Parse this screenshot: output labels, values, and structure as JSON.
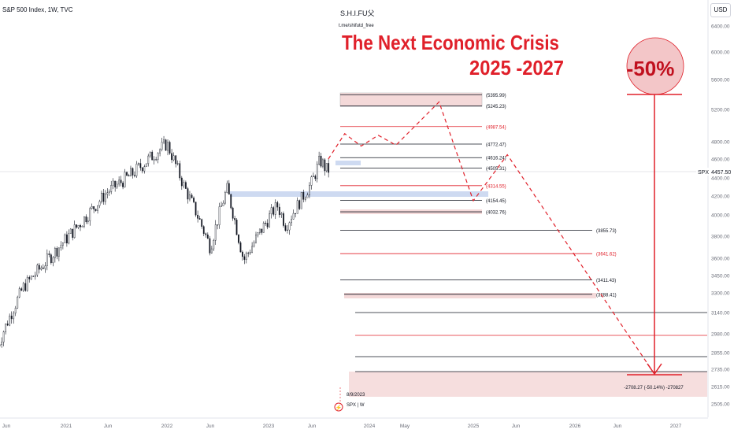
{
  "header": {
    "symbol_title": "S&P 500 Index, 1W, TVC",
    "author": "S.H.I.FU父",
    "author_link": "t.me/shifutd_free",
    "currency_button": "USD"
  },
  "annotations": {
    "headline_line1": "The Next Economic Crisis",
    "headline_line2": "2025 -2027",
    "drop_badge": "-50%",
    "start_date": "8/9/2023",
    "mini_symbol": "SPX | W",
    "measure_label": "-2708.27 (-50.14%) -270827"
  },
  "price_label": {
    "symbol": "SPX",
    "value": "4457.50"
  },
  "colors": {
    "red": "#e0202a",
    "dark_red": "#c0101e",
    "candle": "#131722",
    "zone_fill": "#f4d9d9",
    "blue_zone": "#b8c8e8",
    "badge_fill": "#f3c6c8"
  },
  "chart_data": {
    "type": "candlestick",
    "x_ticks": [
      "Jun",
      "2021",
      "Jun",
      "2022",
      "Jun",
      "2023",
      "Jun",
      "2024",
      "May",
      "2025",
      "Jun",
      "2026",
      "Jun",
      "2027"
    ],
    "y_ticks": [
      6400,
      6000,
      5600,
      5200,
      4800,
      4600,
      4400,
      4200,
      4000,
      3800,
      3600,
      3450,
      3300,
      3140,
      2980,
      2855,
      2735,
      2615,
      2505
    ],
    "y_range": [
      2505,
      6400
    ],
    "series_anchor_points": [
      {
        "date": "2020-05",
        "close": 2900
      },
      {
        "date": "2020-08",
        "close": 3350
      },
      {
        "date": "2020-11",
        "close": 3600
      },
      {
        "date": "2021-03",
        "close": 3950
      },
      {
        "date": "2021-06",
        "close": 4250
      },
      {
        "date": "2021-09",
        "close": 4450
      },
      {
        "date": "2022-01",
        "close": 4780
      },
      {
        "date": "2022-03",
        "close": 4300
      },
      {
        "date": "2022-06",
        "close": 3700
      },
      {
        "date": "2022-08",
        "close": 4280
      },
      {
        "date": "2022-10",
        "close": 3580
      },
      {
        "date": "2023-02",
        "close": 4100
      },
      {
        "date": "2023-03",
        "close": 3900
      },
      {
        "date": "2023-06",
        "close": 4350
      },
      {
        "date": "2023-07",
        "close": 4590
      },
      {
        "date": "2023-08",
        "close": 4457.5
      }
    ],
    "levels": [
      {
        "label": "(5395.99)",
        "value": 5395.99,
        "color": "black"
      },
      {
        "label": "(5245.23)",
        "value": 5245.23,
        "color": "black"
      },
      {
        "label": "(4987.54)",
        "value": 4987.54,
        "color": "red"
      },
      {
        "label": "(4772.47)",
        "value": 4772.47,
        "color": "black"
      },
      {
        "label": "(4616.24)",
        "value": 4616.24,
        "color": "black"
      },
      {
        "label": "(4505.31)",
        "value": 4505.31,
        "color": "black"
      },
      {
        "label": "(4314.55)",
        "value": 4314.55,
        "color": "red"
      },
      {
        "label": "(4154.45)",
        "value": 4154.45,
        "color": "black"
      },
      {
        "label": "(4032.76)",
        "value": 4032.76,
        "color": "black"
      },
      {
        "label": "(3855.73)",
        "value": 3855.73,
        "color": "black"
      },
      {
        "label": "(3641.62)",
        "value": 3641.62,
        "color": "red"
      },
      {
        "label": "(3411.43)",
        "value": 3411.43,
        "color": "black"
      },
      {
        "label": "(3288.41)",
        "value": 3288.41,
        "color": "black"
      }
    ],
    "projection_path": [
      {
        "date": "2023-08",
        "value": 4600
      },
      {
        "date": "2023-10",
        "value": 4900
      },
      {
        "date": "2023-12",
        "value": 4750
      },
      {
        "date": "2024-02",
        "value": 4880
      },
      {
        "date": "2024-04",
        "value": 4760
      },
      {
        "date": "2024-09",
        "value": 5300
      },
      {
        "date": "2025-01",
        "value": 4150
      },
      {
        "date": "2025-05",
        "value": 4650
      },
      {
        "date": "2026-10",
        "value": 2740
      }
    ],
    "forecast_drop": {
      "from": 5400,
      "to": 2700,
      "percent": "-50%"
    },
    "legend": "none",
    "grid": false
  }
}
